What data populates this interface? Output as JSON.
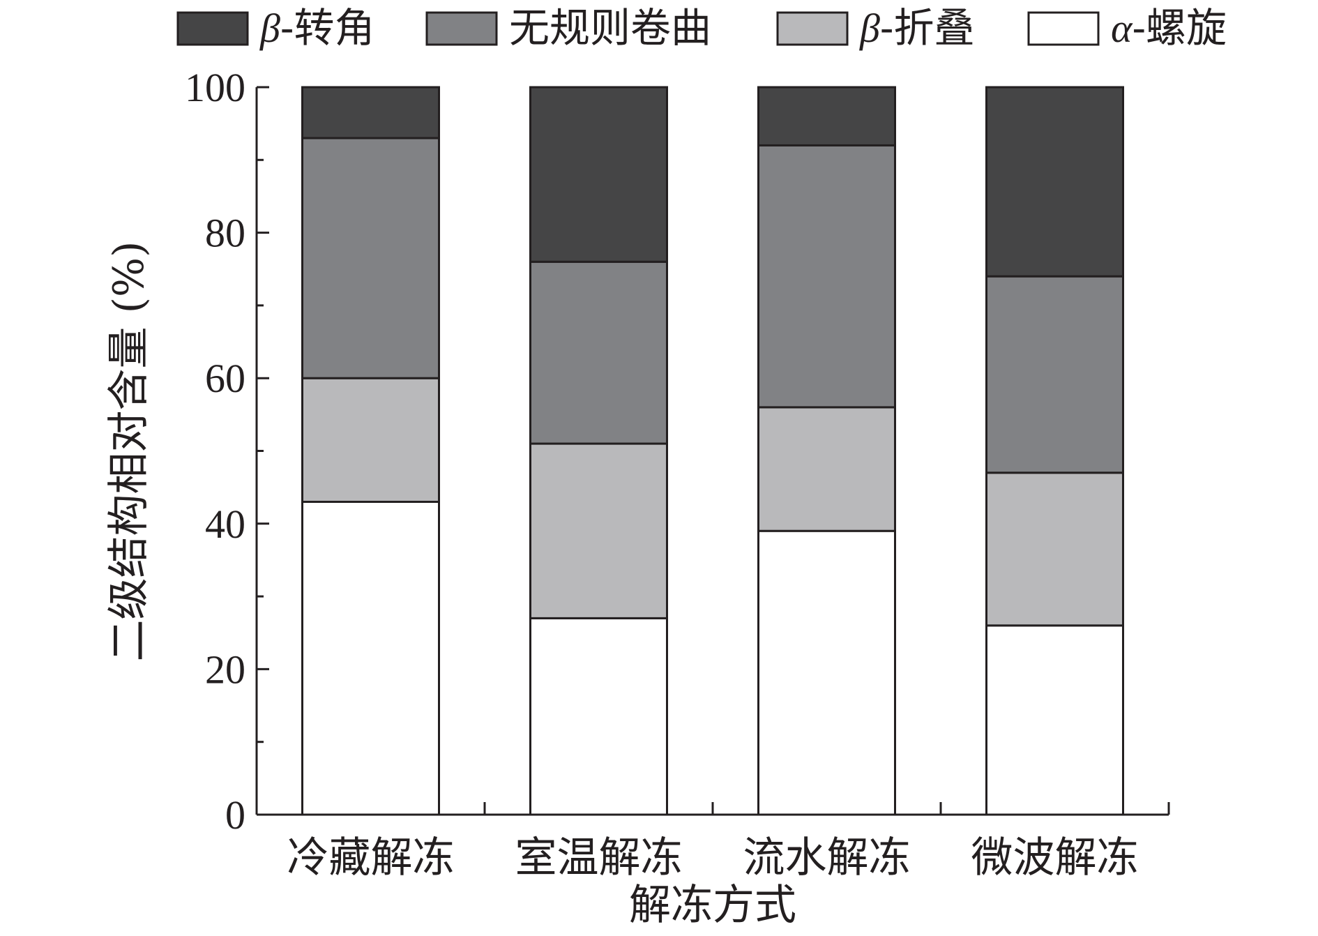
{
  "chart_data": {
    "type": "bar",
    "stacked": true,
    "title": "",
    "xlabel": "解冻方式",
    "ylabel": "二级结构相对含量 (%)",
    "ylim": [
      0,
      100
    ],
    "yticks": [
      0,
      20,
      40,
      60,
      80,
      100
    ],
    "grid": false,
    "legend_position": "top",
    "categories": [
      "冷藏解冻",
      "室温解冻",
      "流水解冻",
      "微波解冻"
    ],
    "series": [
      {
        "name": "α-螺旋",
        "greek": "α",
        "suffix": "-螺旋",
        "color": "#ffffff",
        "values": [
          43,
          27,
          39,
          26
        ]
      },
      {
        "name": "β-折叠",
        "greek": "β",
        "suffix": "-折叠",
        "color": "#b9b9bb",
        "values": [
          17,
          24,
          17,
          21
        ]
      },
      {
        "name": "无规则卷曲",
        "greek": "",
        "suffix": "无规则卷曲",
        "color": "#818285",
        "values": [
          33,
          25,
          36,
          27
        ]
      },
      {
        "name": "β-转角",
        "greek": "β",
        "suffix": "-转角",
        "color": "#454546",
        "values": [
          7,
          24,
          8,
          26
        ]
      }
    ],
    "legend_order": [
      "β-转角",
      "无规则卷曲",
      "β-折叠",
      "α-螺旋"
    ]
  }
}
